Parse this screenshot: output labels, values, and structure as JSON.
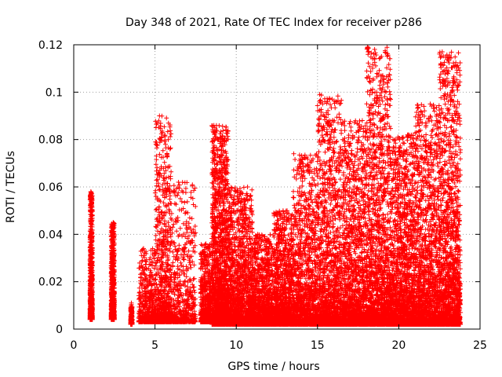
{
  "chart_data": {
    "type": "scatter",
    "title": "Day 348 of 2021, Rate Of TEC Index for receiver p286",
    "xlabel": "GPS time / hours",
    "ylabel": "ROTI / TECUs",
    "xlim": [
      0,
      25
    ],
    "ylim": [
      0,
      0.12
    ],
    "xticks": [
      0,
      5,
      10,
      15,
      20,
      25
    ],
    "yticks": [
      0,
      0.02,
      0.04,
      0.06,
      0.08,
      0.1,
      0.12
    ],
    "xtick_labels": [
      "0",
      "5",
      "10",
      "15",
      "20",
      "25"
    ],
    "ytick_labels": [
      "0",
      "0.02",
      "0.04",
      "0.06",
      "0.08",
      "0.1",
      "0.12"
    ],
    "grid": true,
    "marker": "plus",
    "marker_color": "#ff0000",
    "seed": 348,
    "clusters": [
      {
        "start": 1.0,
        "end": 1.15,
        "ymax": 0.058,
        "density": 900,
        "base": 0.004
      },
      {
        "start": 2.3,
        "end": 2.5,
        "ymax": 0.045,
        "density": 900,
        "base": 0.004
      },
      {
        "start": 3.5,
        "end": 3.6,
        "ymax": 0.011,
        "density": 200,
        "base": 0.002
      },
      {
        "start": 4.0,
        "end": 5.0,
        "ymax": 0.034,
        "density": 500,
        "base": 0.003
      },
      {
        "start": 5.0,
        "end": 6.0,
        "ymax": 0.09,
        "density": 800,
        "base": 0.003
      },
      {
        "start": 6.0,
        "end": 7.5,
        "ymax": 0.062,
        "density": 600,
        "base": 0.003
      },
      {
        "start": 7.8,
        "end": 8.5,
        "ymax": 0.036,
        "density": 600,
        "base": 0.003
      },
      {
        "start": 8.5,
        "end": 9.5,
        "ymax": 0.086,
        "density": 1800,
        "base": 0.002
      },
      {
        "start": 9.5,
        "end": 11.0,
        "ymax": 0.06,
        "density": 1600,
        "base": 0.002
      },
      {
        "start": 11.0,
        "end": 12.3,
        "ymax": 0.04,
        "density": 1200,
        "base": 0.002
      },
      {
        "start": 12.3,
        "end": 13.5,
        "ymax": 0.05,
        "density": 1200,
        "base": 0.002
      },
      {
        "start": 13.5,
        "end": 15.0,
        "ymax": 0.074,
        "density": 1300,
        "base": 0.002
      },
      {
        "start": 15.0,
        "end": 16.5,
        "ymax": 0.099,
        "density": 1500,
        "base": 0.002
      },
      {
        "start": 16.5,
        "end": 18.0,
        "ymax": 0.088,
        "density": 1500,
        "base": 0.002
      },
      {
        "start": 18.0,
        "end": 19.5,
        "ymax": 0.119,
        "density": 1700,
        "base": 0.002
      },
      {
        "start": 19.5,
        "end": 21.0,
        "ymax": 0.082,
        "density": 1700,
        "base": 0.002
      },
      {
        "start": 21.0,
        "end": 22.5,
        "ymax": 0.095,
        "density": 1600,
        "base": 0.002
      },
      {
        "start": 22.5,
        "end": 23.8,
        "ymax": 0.117,
        "density": 1600,
        "base": 0.002
      }
    ]
  }
}
